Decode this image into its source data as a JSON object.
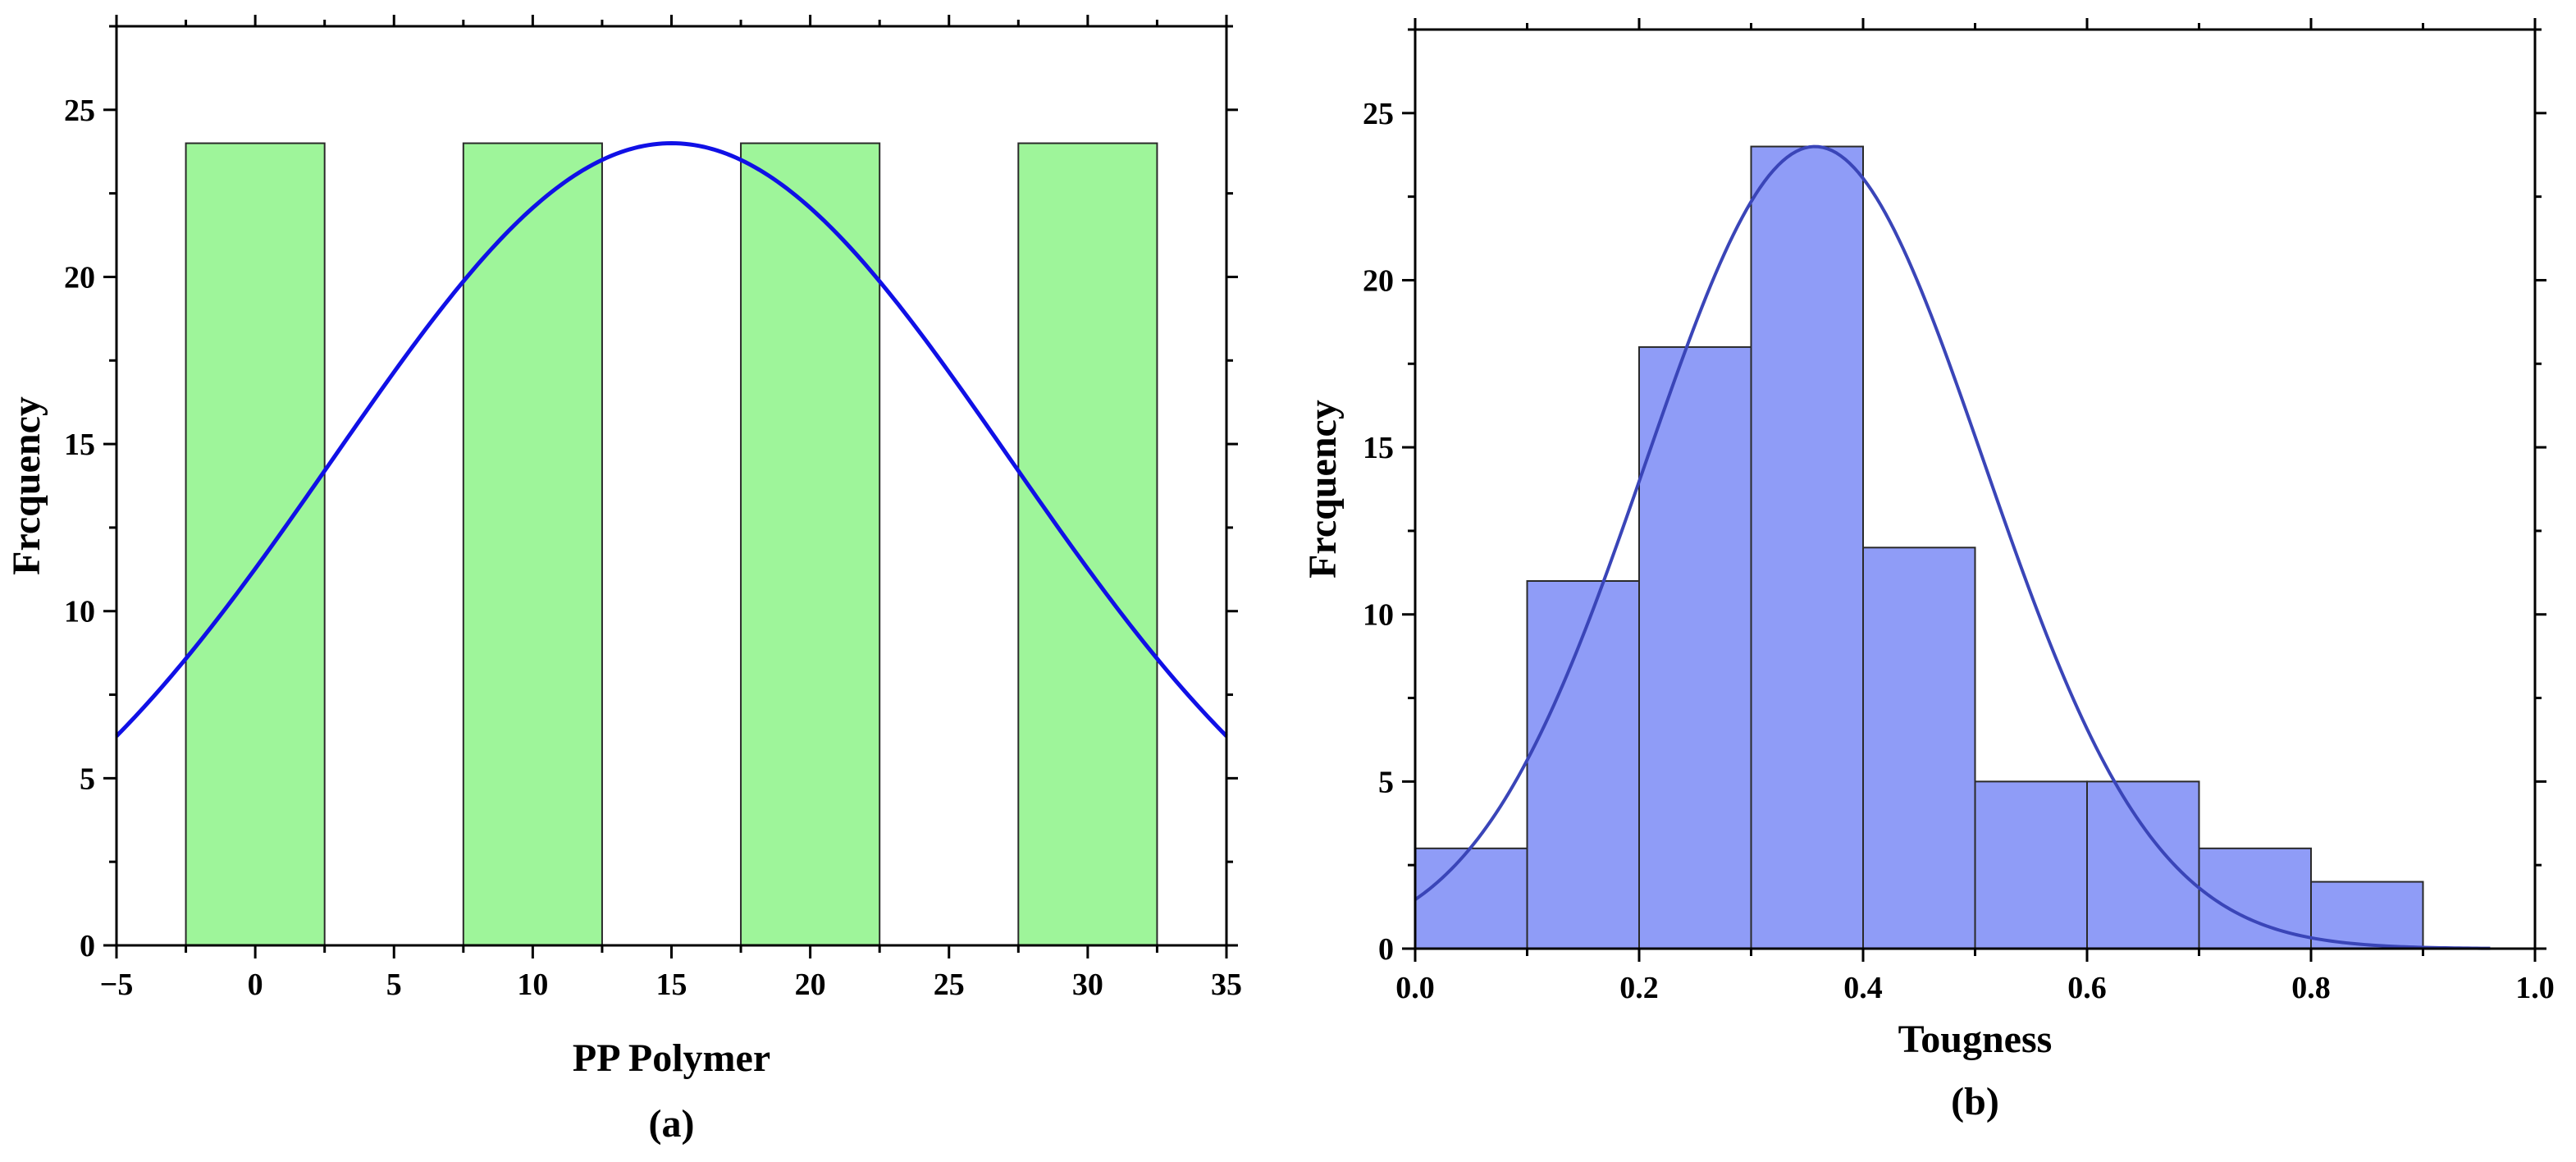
{
  "chart_data": [
    {
      "type": "bar",
      "panel_label": "(a)",
      "xlabel": "PP Polymer",
      "ylabel": "Frcquency",
      "xlim": [
        -5,
        35
      ],
      "ylim": [
        0,
        27.5
      ],
      "xticks": [
        -5,
        0,
        5,
        10,
        15,
        20,
        25,
        30,
        35
      ],
      "xtick_labels": [
        "−5",
        "0",
        "5",
        "10",
        "15",
        "20",
        "25",
        "30",
        "35"
      ],
      "yticks": [
        0,
        5,
        10,
        15,
        20,
        25
      ],
      "ytick_labels": [
        "0",
        "5",
        "10",
        "15",
        "20",
        "25"
      ],
      "bins": [
        {
          "start": -2.5,
          "end": 2.5,
          "value": 24
        },
        {
          "start": 7.5,
          "end": 12.5,
          "value": 24
        },
        {
          "start": 17.5,
          "end": 22.5,
          "value": 24
        },
        {
          "start": 27.5,
          "end": 32.5,
          "value": 24
        }
      ],
      "fit_curve": {
        "type": "normal",
        "mean": 15,
        "sd": 12.2,
        "peak": 24,
        "x_range": [
          -5,
          35
        ]
      },
      "bar_color": "#9ef59a",
      "curve_color": "#1010e6",
      "grid": false
    },
    {
      "type": "bar",
      "panel_label": "(b)",
      "xlabel": "Tougness",
      "ylabel": "Frcquency",
      "xlim": [
        0,
        1.0
      ],
      "ylim": [
        0,
        27.5
      ],
      "xticks": [
        0,
        0.2,
        0.4,
        0.6,
        0.8,
        1.0
      ],
      "xtick_labels": [
        "0.0",
        "0.2",
        "0.4",
        "0.6",
        "0.8",
        "1.0"
      ],
      "yticks": [
        0,
        5,
        10,
        15,
        20,
        25
      ],
      "ytick_labels": [
        "0",
        "5",
        "10",
        "15",
        "20",
        "25"
      ],
      "bins": [
        {
          "start": 0.0,
          "end": 0.1,
          "value": 3
        },
        {
          "start": 0.1,
          "end": 0.2,
          "value": 11
        },
        {
          "start": 0.2,
          "end": 0.3,
          "value": 18
        },
        {
          "start": 0.3,
          "end": 0.4,
          "value": 24
        },
        {
          "start": 0.4,
          "end": 0.5,
          "value": 12
        },
        {
          "start": 0.5,
          "end": 0.6,
          "value": 5
        },
        {
          "start": 0.6,
          "end": 0.7,
          "value": 5
        },
        {
          "start": 0.7,
          "end": 0.8,
          "value": 3
        },
        {
          "start": 0.8,
          "end": 0.9,
          "value": 2
        }
      ],
      "fit_curve": {
        "type": "normal",
        "mean": 0.357,
        "sd": 0.151,
        "peak": 24,
        "x_range": [
          0,
          0.96
        ]
      },
      "bar_color": "#8f9cf7",
      "curve_color": "#3a45b8",
      "grid": false
    }
  ]
}
